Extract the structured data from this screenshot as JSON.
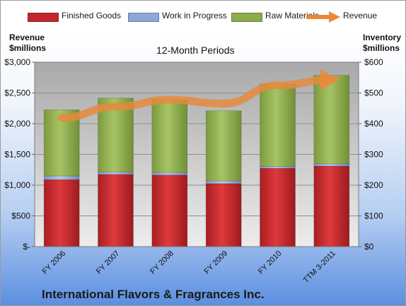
{
  "legend": [
    {
      "label": "Finished Goods",
      "color": "#c0282d"
    },
    {
      "label": "Work in Progress",
      "color": "#8fa7d6"
    },
    {
      "label": "Raw Materials",
      "color": "#8cab4a"
    },
    {
      "label": "Revenue",
      "color": "#e8893a"
    }
  ],
  "left_axis_title": "Revenue\n$millions",
  "right_axis_title": "Inventory\n$millions",
  "period_label": "12-Month Periods",
  "company": "International Flavors & Fragrances Inc.",
  "chart_data": {
    "type": "bar",
    "stacked": true,
    "categories": [
      "FY 2006",
      "FY 2007",
      "FY 2008",
      "FY 2009",
      "FY 2010",
      "TTM 3-2011"
    ],
    "series": [
      {
        "name": "Finished Goods",
        "axis": "right",
        "values": [
          218,
          235,
          233,
          205,
          255,
          262
        ]
      },
      {
        "name": "Work in Progress",
        "axis": "right",
        "values": [
          12,
          8,
          8,
          9,
          6,
          7
        ]
      },
      {
        "name": "Raw Materials",
        "axis": "right",
        "values": [
          215,
          240,
          237,
          228,
          268,
          288
        ]
      },
      {
        "name": "Revenue",
        "axis": "left",
        "type": "line",
        "values": [
          2095,
          2276,
          2389,
          2326,
          2623,
          2715
        ]
      }
    ],
    "left_axis": {
      "ticks": [
        "$-",
        "$500",
        "$1,000",
        "$1,500",
        "$2,000",
        "$2,500",
        "$3,000"
      ],
      "range": [
        0,
        3000
      ]
    },
    "right_axis": {
      "ticks": [
        "$0",
        "$100",
        "$200",
        "$300",
        "$400",
        "$500",
        "$600"
      ],
      "range": [
        0,
        600
      ]
    },
    "grid": true,
    "legend_position": "top"
  }
}
